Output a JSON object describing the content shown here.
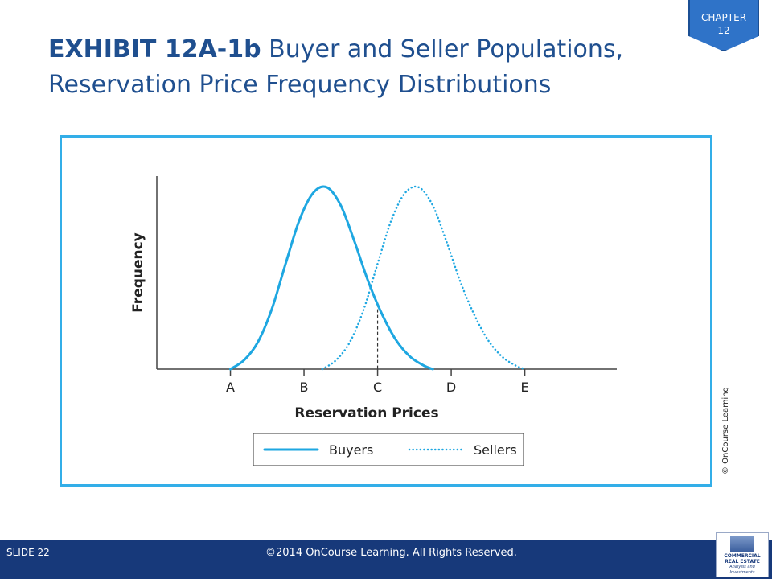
{
  "header": {
    "chapter_label": "CHAPTER",
    "chapter_number": "12",
    "title_lead": "EXHIBIT 12A-1b",
    "title_rest": " Buyer and Seller Populations, Reservation Price Frequency Distributions"
  },
  "chart_data": {
    "type": "line",
    "xlabel": "Reservation Prices",
    "ylabel": "Frequency",
    "categories": [
      "A",
      "B",
      "C",
      "D",
      "E"
    ],
    "xlim": [
      0,
      5
    ],
    "ylim": [
      0,
      1
    ],
    "series": [
      {
        "name": "Buyers",
        "style": "solid",
        "color": "#1ea7e1",
        "x": [
          0.8,
          0.95,
          1.1,
          1.25,
          1.4,
          1.55,
          1.7,
          1.85,
          2.0,
          2.15,
          2.3,
          2.45,
          2.6,
          2.75,
          2.9,
          3.0
        ],
        "y": [
          0.0,
          0.05,
          0.15,
          0.33,
          0.58,
          0.82,
          0.97,
          1.0,
          0.9,
          0.7,
          0.48,
          0.3,
          0.16,
          0.07,
          0.02,
          0.0
        ]
      },
      {
        "name": "Sellers",
        "style": "dotted",
        "color": "#1ea7e1",
        "x": [
          1.8,
          1.95,
          2.1,
          2.25,
          2.4,
          2.55,
          2.7,
          2.85,
          3.0,
          3.15,
          3.3,
          3.45,
          3.6,
          3.75,
          3.9,
          4.0
        ],
        "y": [
          0.0,
          0.05,
          0.15,
          0.33,
          0.58,
          0.82,
          0.97,
          1.0,
          0.9,
          0.7,
          0.48,
          0.3,
          0.16,
          0.07,
          0.02,
          0.0
        ]
      }
    ],
    "category_x": [
      0.8,
      1.6,
      2.4,
      3.2,
      4.0
    ],
    "crossover_x": 2.4,
    "grid": false,
    "legend": "bottom-center"
  },
  "credit": "© OnCourse Learning",
  "footer": {
    "slide": "SLIDE 22",
    "copyright": "©2014 OnCourse Learning. All Rights Reserved."
  },
  "logo": {
    "line1": "COMMERCIAL",
    "line2": "REAL ESTATE",
    "line3": "Analysis and Investments"
  },
  "colors": {
    "accent": "#1ea7e1",
    "title": "#1f4f8f",
    "footer": "#17397a",
    "frame": "#33aee8"
  }
}
